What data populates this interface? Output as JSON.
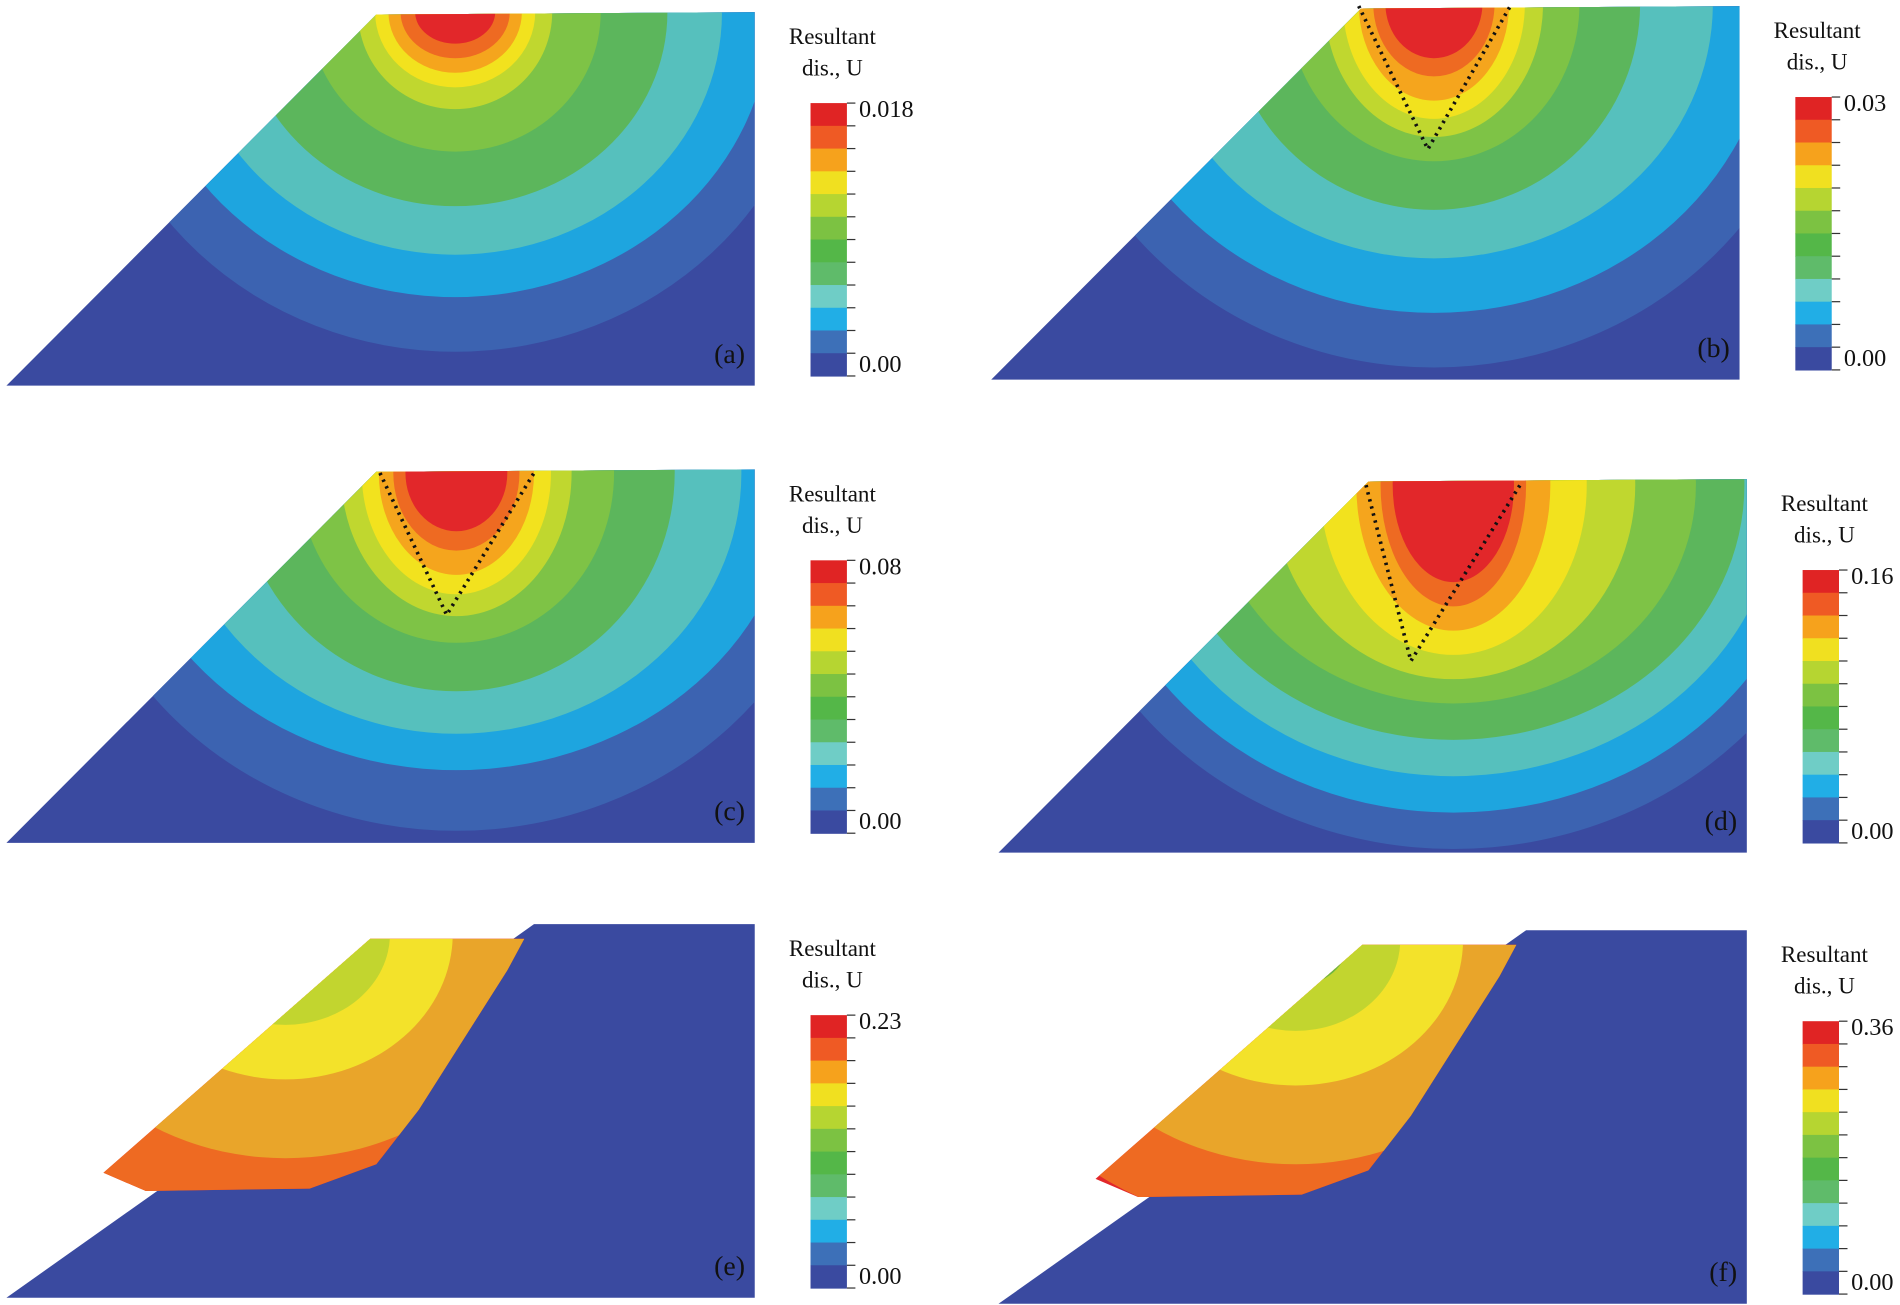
{
  "panels": [
    {
      "label": "(a)",
      "legend_title": "Resultant",
      "legend_subtitle": "dis., U",
      "max": "0.018",
      "min": "0.00"
    },
    {
      "label": "(b)",
      "legend_title": "Resultant",
      "legend_subtitle": "dis., U",
      "max": "0.03",
      "min": "0.00"
    },
    {
      "label": "(c)",
      "legend_title": "Resultant",
      "legend_subtitle": "dis., U",
      "max": "0.08",
      "min": "0.00"
    },
    {
      "label": "(d)",
      "legend_title": "Resultant",
      "legend_subtitle": "dis., U",
      "max": "0.16",
      "min": "0.00"
    },
    {
      "label": "(e)",
      "legend_title": "Resultant",
      "legend_subtitle": "dis., U",
      "max": "0.23",
      "min": "0.00"
    },
    {
      "label": "(f)",
      "legend_title": "Resultant",
      "legend_subtitle": "dis., U",
      "max": "0.36",
      "min": "0.00"
    }
  ]
}
